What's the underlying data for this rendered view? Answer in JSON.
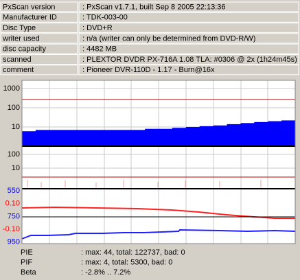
{
  "info": {
    "rows": [
      {
        "label": "PxScan version",
        "value": ": PxScan v1.7.1, built Sep  8 2005 22:13:36"
      },
      {
        "label": "Manufacturer ID",
        "value": ": TDK-003-00"
      },
      {
        "label": "Disc Type",
        "value": ": DVD+R"
      },
      {
        "label": "writer used",
        "value": ": n/a (writer can only be determined from DVD-R/W)"
      },
      {
        "label": "disc capacity",
        "value": ": 4482 MB"
      },
      {
        "label": "scanned",
        "value": ": PLEXTOR DVDR PX-716A 1.08 TLA: #0306 @ 2x (1h24m45s)"
      },
      {
        "label": "comment",
        "value": ": Pioneer DVR-110D - 1.17 - Burn@16x"
      }
    ]
  },
  "plot": {
    "pie_ticks": [
      1000,
      100,
      10
    ],
    "pie_profile": [
      6,
      7,
      7,
      7,
      7,
      7,
      7,
      7,
      7,
      8,
      8,
      9,
      10,
      11,
      12,
      14,
      16,
      18,
      20,
      22
    ],
    "pif_ticks": [
      100,
      10
    ],
    "beta_labels": [
      {
        "label": "550",
        "color": "#0000ff"
      },
      {
        "label": "0.10",
        "color": "#ff0000"
      },
      {
        "label": "750",
        "color": "#0000ff"
      },
      {
        "label": "-0.10",
        "color": "#ff0000"
      },
      {
        "label": "950",
        "color": "#0000ff"
      }
    ]
  },
  "summary": {
    "rows": [
      {
        "label": "PIE",
        "value": ": max: 44, total: 122737, bad: 0"
      },
      {
        "label": "PIF",
        "value": ": max: 4, total: 5300, bad: 0"
      },
      {
        "label": "Beta",
        "value": ": -2.8% .. 7.2%"
      }
    ]
  }
}
